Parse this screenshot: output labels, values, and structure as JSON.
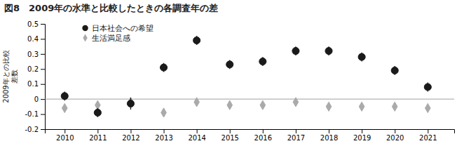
{
  "chart_data": {
    "type": "scatter",
    "title": "図8　2009年の水準と比較したときの各調査年の差",
    "y_label": "2009年との比較\n差数",
    "x": [
      2010,
      2011,
      2012,
      2013,
      2014,
      2015,
      2016,
      2017,
      2018,
      2019,
      2020,
      2021
    ],
    "series": [
      {
        "name": "日本社会への希望",
        "color": "#1a1a1a",
        "marker": "circle",
        "values": [
          0.02,
          -0.09,
          -0.03,
          0.21,
          0.39,
          0.23,
          0.25,
          0.32,
          0.32,
          0.28,
          0.19,
          0.08
        ],
        "yerr_low": [
          0.03,
          0.03,
          0.04,
          0.03,
          0.03,
          0.03,
          0.03,
          0.03,
          0.03,
          0.03,
          0.03,
          0.03
        ],
        "yerr_high": [
          0.03,
          0.03,
          0.04,
          0.03,
          0.03,
          0.03,
          0.03,
          0.03,
          0.03,
          0.03,
          0.03,
          0.03
        ]
      },
      {
        "name": "生活満足感",
        "color": "#aaaaaa",
        "marker": "diamond",
        "values": [
          -0.06,
          -0.04,
          -0.02,
          -0.09,
          -0.02,
          -0.04,
          -0.04,
          -0.02,
          -0.05,
          -0.05,
          -0.05,
          -0.06
        ],
        "yerr_low": [
          0.02,
          0.02,
          0.02,
          0.02,
          0.02,
          0.02,
          0.02,
          0.02,
          0.02,
          0.02,
          0.02,
          0.02
        ],
        "yerr_high": [
          0.02,
          0.02,
          0.02,
          0.02,
          0.02,
          0.02,
          0.02,
          0.02,
          0.02,
          0.02,
          0.02,
          0.02
        ]
      }
    ],
    "xlim": [
      2009.4,
      2021.8
    ],
    "xticks": [
      2010,
      2011,
      2012,
      2013,
      2014,
      2015,
      2016,
      2017,
      2018,
      2019,
      2020,
      2021
    ],
    "ylim": [
      -0.2,
      0.5
    ],
    "yticks": [
      -0.2,
      -0.1,
      0,
      0.1,
      0.2,
      0.3,
      0.4,
      0.5
    ],
    "grid": false,
    "legend": "upper left"
  }
}
